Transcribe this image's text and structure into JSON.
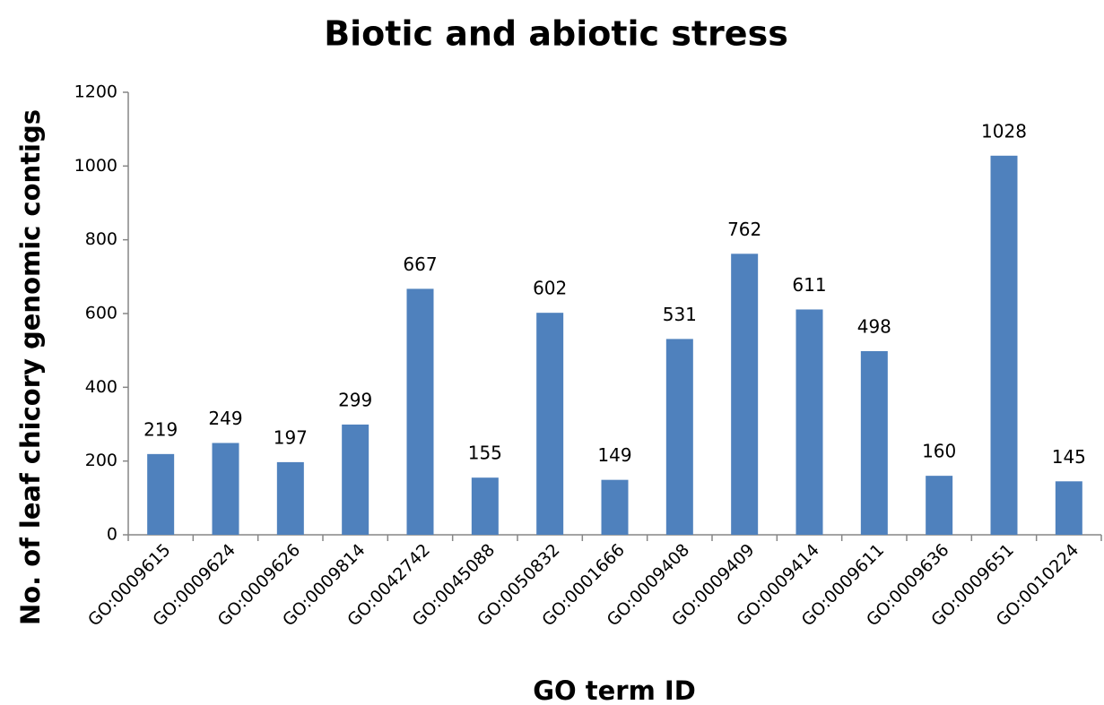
{
  "chart_data": {
    "type": "bar",
    "title": "Biotic and abiotic stress",
    "x_label": "GO term ID",
    "y_label": "No. of leaf chicory genomic contigs",
    "categories": [
      "GO:0009615",
      "GO:0009624",
      "GO:0009626",
      "GO:0009814",
      "GO:0042742",
      "GO:0045088",
      "GO:0050832",
      "GO:0001666",
      "GO:0009408",
      "GO:0009409",
      "GO:0009414",
      "GO:0009611",
      "GO:0009636",
      "GO:0009651",
      "GO:0010224"
    ],
    "values": [
      219,
      249,
      197,
      299,
      667,
      155,
      602,
      149,
      531,
      762,
      611,
      498,
      160,
      1028,
      145
    ],
    "color": "#4f81bd",
    "ylim": [
      0,
      1200
    ],
    "yticks": [
      0,
      200,
      400,
      600,
      800,
      1000,
      1200
    ],
    "grid": false
  }
}
